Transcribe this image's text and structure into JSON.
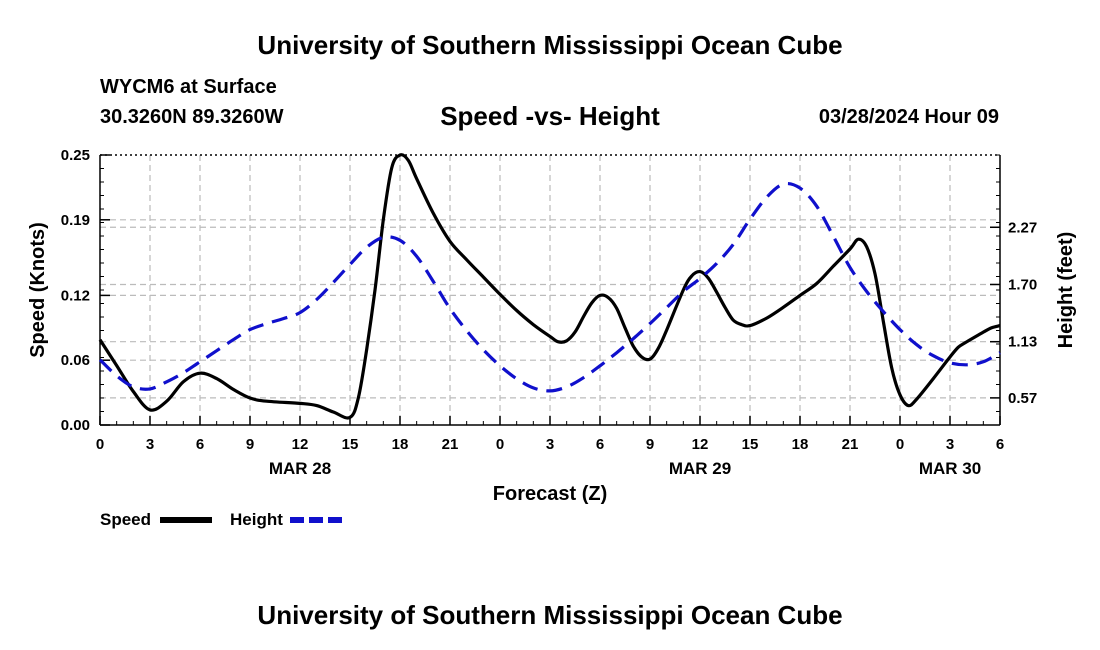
{
  "header": {
    "title_top": "University of Southern Mississippi Ocean Cube",
    "station": "WYCM6 at Surface",
    "coords": "30.3260N  89.3260W",
    "chart_title": "Speed -vs- Height",
    "datetime": "03/28/2024 Hour 09",
    "title_bottom": "University of Southern Mississippi Ocean Cube"
  },
  "colors": {
    "speed": "#000000",
    "height": "#1010cc",
    "grid": "#bbbbbb"
  },
  "chart_data": {
    "type": "line",
    "title": "Speed -vs- Height",
    "xlabel": "Forecast (Z)",
    "ylabel_left": "Speed (Knots)",
    "ylabel_right": "Height (feet)",
    "x_range_hours": [
      0,
      54
    ],
    "x_ticks": [
      {
        "h": 0,
        "label": "0"
      },
      {
        "h": 3,
        "label": "3"
      },
      {
        "h": 6,
        "label": "6"
      },
      {
        "h": 9,
        "label": "9"
      },
      {
        "h": 12,
        "label": "12"
      },
      {
        "h": 15,
        "label": "15"
      },
      {
        "h": 18,
        "label": "18"
      },
      {
        "h": 21,
        "label": "21"
      },
      {
        "h": 24,
        "label": "0"
      },
      {
        "h": 27,
        "label": "3"
      },
      {
        "h": 30,
        "label": "6"
      },
      {
        "h": 33,
        "label": "9"
      },
      {
        "h": 36,
        "label": "12"
      },
      {
        "h": 39,
        "label": "15"
      },
      {
        "h": 42,
        "label": "18"
      },
      {
        "h": 45,
        "label": "21"
      },
      {
        "h": 48,
        "label": "0"
      },
      {
        "h": 51,
        "label": "3"
      },
      {
        "h": 54,
        "label": "6"
      }
    ],
    "date_labels": [
      {
        "h": 12,
        "label": "MAR 28"
      },
      {
        "h": 36,
        "label": "MAR 29"
      },
      {
        "h": 51,
        "label": "MAR 30"
      }
    ],
    "y_left": {
      "min": 0,
      "max": 0.25,
      "ticks": [
        0.0,
        0.06,
        0.12,
        0.19,
        0.25
      ],
      "tick_labels": [
        "0.00",
        "0.06",
        "0.12",
        "0.19",
        "0.25"
      ]
    },
    "y_right": {
      "min": 0.3,
      "max": 2.99,
      "ticks": [
        0.57,
        1.13,
        1.7,
        2.27
      ],
      "tick_labels": [
        "0.57",
        "1.13",
        "1.70",
        "2.27"
      ]
    },
    "grid": true,
    "series": [
      {
        "name": "Speed",
        "axis": "left",
        "style": "solid",
        "points": [
          [
            0,
            0.079
          ],
          [
            1,
            0.055
          ],
          [
            2,
            0.031
          ],
          [
            3,
            0.014
          ],
          [
            4,
            0.022
          ],
          [
            5,
            0.04
          ],
          [
            6,
            0.048
          ],
          [
            7,
            0.043
          ],
          [
            8,
            0.033
          ],
          [
            9,
            0.025
          ],
          [
            10,
            0.022
          ],
          [
            12,
            0.02
          ],
          [
            13,
            0.018
          ],
          [
            14,
            0.012
          ],
          [
            15,
            0.007
          ],
          [
            15.5,
            0.025
          ],
          [
            16,
            0.07
          ],
          [
            16.5,
            0.125
          ],
          [
            17,
            0.19
          ],
          [
            17.5,
            0.238
          ],
          [
            18,
            0.25
          ],
          [
            18.5,
            0.245
          ],
          [
            19,
            0.228
          ],
          [
            20,
            0.196
          ],
          [
            21,
            0.17
          ],
          [
            22,
            0.153
          ],
          [
            23,
            0.137
          ],
          [
            24,
            0.121
          ],
          [
            25,
            0.106
          ],
          [
            26,
            0.093
          ],
          [
            27,
            0.082
          ],
          [
            27.5,
            0.077
          ],
          [
            28,
            0.078
          ],
          [
            28.5,
            0.086
          ],
          [
            29,
            0.1
          ],
          [
            29.5,
            0.113
          ],
          [
            30,
            0.12
          ],
          [
            30.5,
            0.118
          ],
          [
            31,
            0.108
          ],
          [
            31.5,
            0.09
          ],
          [
            32,
            0.073
          ],
          [
            32.5,
            0.063
          ],
          [
            33,
            0.061
          ],
          [
            33.5,
            0.071
          ],
          [
            34,
            0.088
          ],
          [
            35,
            0.125
          ],
          [
            35.5,
            0.138
          ],
          [
            36,
            0.142
          ],
          [
            36.5,
            0.136
          ],
          [
            37,
            0.123
          ],
          [
            37.5,
            0.109
          ],
          [
            38,
            0.097
          ],
          [
            38.5,
            0.093
          ],
          [
            39,
            0.092
          ],
          [
            40,
            0.099
          ],
          [
            41,
            0.109
          ],
          [
            42,
            0.12
          ],
          [
            43,
            0.131
          ],
          [
            44,
            0.147
          ],
          [
            45,
            0.163
          ],
          [
            45.5,
            0.172
          ],
          [
            46,
            0.165
          ],
          [
            46.5,
            0.14
          ],
          [
            47,
            0.096
          ],
          [
            47.5,
            0.053
          ],
          [
            48,
            0.028
          ],
          [
            48.5,
            0.018
          ],
          [
            49,
            0.024
          ],
          [
            50,
            0.043
          ],
          [
            51,
            0.063
          ],
          [
            51.5,
            0.072
          ],
          [
            52,
            0.077
          ],
          [
            53,
            0.086
          ],
          [
            53.5,
            0.09
          ],
          [
            54,
            0.092
          ]
        ]
      },
      {
        "name": "Height",
        "axis": "right",
        "style": "dashed",
        "points": [
          [
            0,
            0.95
          ],
          [
            1,
            0.79
          ],
          [
            2,
            0.68
          ],
          [
            3,
            0.66
          ],
          [
            4,
            0.73
          ],
          [
            5,
            0.82
          ],
          [
            6,
            0.93
          ],
          [
            7,
            1.04
          ],
          [
            8,
            1.15
          ],
          [
            9,
            1.25
          ],
          [
            10,
            1.31
          ],
          [
            11,
            1.36
          ],
          [
            12,
            1.42
          ],
          [
            13,
            1.55
          ],
          [
            14,
            1.72
          ],
          [
            15,
            1.9
          ],
          [
            16,
            2.07
          ],
          [
            17,
            2.17
          ],
          [
            18,
            2.14
          ],
          [
            19,
            1.98
          ],
          [
            20,
            1.73
          ],
          [
            21,
            1.46
          ],
          [
            22,
            1.24
          ],
          [
            23,
            1.05
          ],
          [
            24,
            0.89
          ],
          [
            25,
            0.76
          ],
          [
            26,
            0.67
          ],
          [
            27,
            0.64
          ],
          [
            28,
            0.68
          ],
          [
            29,
            0.77
          ],
          [
            30,
            0.89
          ],
          [
            31,
            1.02
          ],
          [
            32,
            1.16
          ],
          [
            33,
            1.31
          ],
          [
            34,
            1.47
          ],
          [
            35,
            1.63
          ],
          [
            36,
            1.76
          ],
          [
            37,
            1.91
          ],
          [
            38,
            2.1
          ],
          [
            39,
            2.35
          ],
          [
            40,
            2.57
          ],
          [
            41,
            2.7
          ],
          [
            42,
            2.66
          ],
          [
            43,
            2.48
          ],
          [
            44,
            2.18
          ],
          [
            45,
            1.87
          ],
          [
            46,
            1.63
          ],
          [
            47,
            1.43
          ],
          [
            48,
            1.25
          ],
          [
            49,
            1.1
          ],
          [
            50,
            0.99
          ],
          [
            51,
            0.92
          ],
          [
            52,
            0.9
          ],
          [
            53,
            0.93
          ],
          [
            54,
            1.02
          ]
        ]
      }
    ],
    "legend": [
      {
        "label": "Speed",
        "style": "solid"
      },
      {
        "label": "Height",
        "style": "dashed"
      }
    ]
  }
}
